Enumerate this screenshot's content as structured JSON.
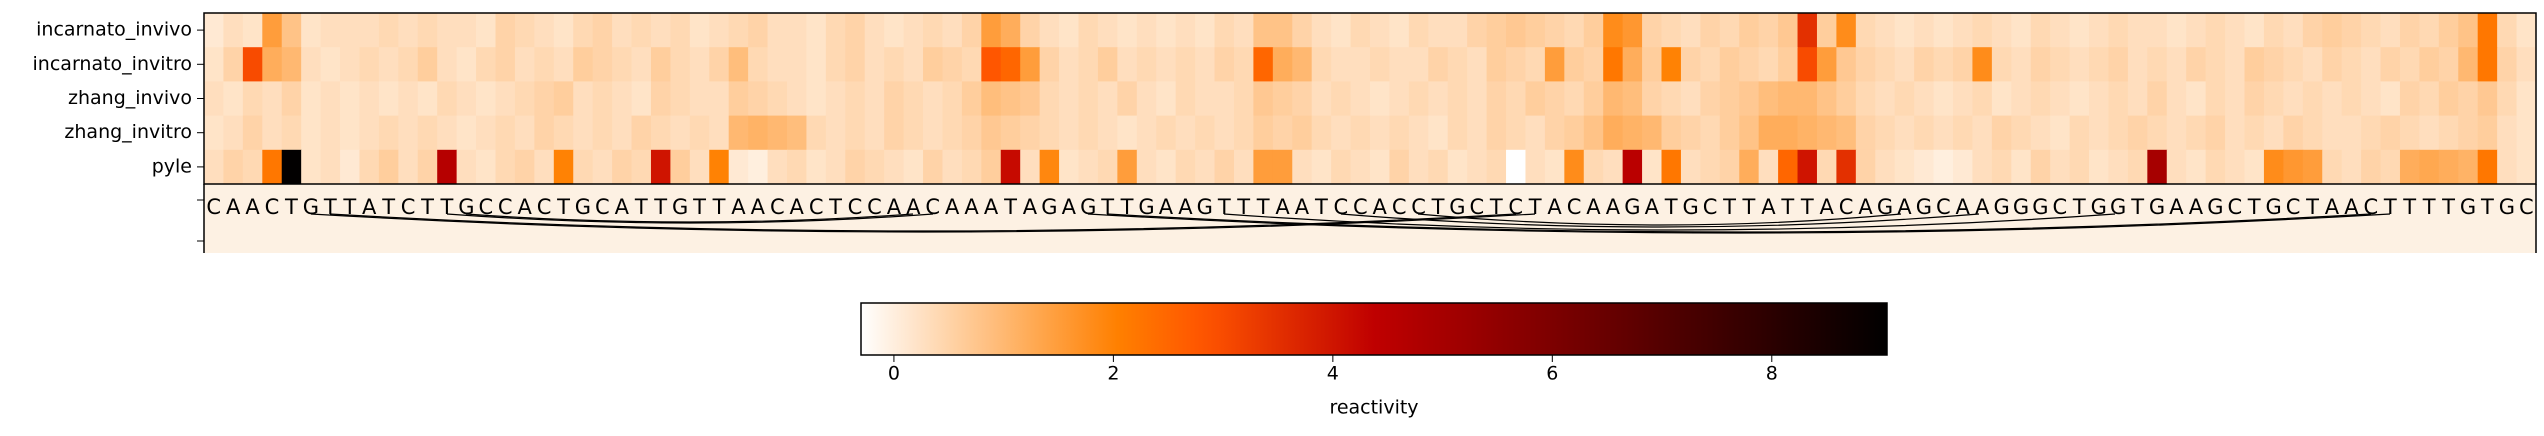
{
  "chart_data": {
    "type": "heatmap",
    "colormap": "gist_heat_r",
    "vlim": [
      -0.3,
      9.05
    ],
    "cticks": [
      0,
      2,
      4,
      6,
      8
    ],
    "colorbar_label": "reactivity",
    "sequence": [
      "C",
      "A",
      "A",
      "C",
      "T",
      "G",
      "T",
      "T",
      "A",
      "T",
      "C",
      "T",
      "T",
      "G",
      "C",
      "C",
      "A",
      "C",
      "T",
      "G",
      "C",
      "A",
      "T",
      "T",
      "G",
      "T",
      "T",
      "A",
      "A",
      "C",
      "A",
      "C",
      "T",
      "C",
      "C",
      "A",
      "A",
      "C",
      "A",
      "A",
      "A",
      "T",
      "A",
      "G",
      "A",
      "G",
      "T",
      "T",
      "G",
      "A",
      "A",
      "G",
      "T",
      "T",
      "T",
      "A",
      "A",
      "T",
      "C",
      "C",
      "A",
      "C",
      "C",
      "T",
      "G",
      "C",
      "T",
      "C",
      "T",
      "A",
      "C",
      "A",
      "A",
      "G",
      "A",
      "T",
      "G",
      "C",
      "T",
      "T",
      "A",
      "T",
      "T",
      "A",
      "C",
      "A",
      "G",
      "A",
      "G",
      "C",
      "A",
      "A",
      "G",
      "G",
      "G",
      "C",
      "T",
      "G",
      "G",
      "T",
      "G",
      "A",
      "A",
      "G",
      "C",
      "T",
      "G",
      "C",
      "T",
      "A",
      "A",
      "C",
      "T",
      "T",
      "T",
      "T",
      "G",
      "T",
      "G",
      "C"
    ],
    "series": [
      {
        "name": "incarnato_invivo",
        "values": [
          0.1,
          0.3,
          0.2,
          1.5,
          0.8,
          0.2,
          0.3,
          0.3,
          0.3,
          0.4,
          0.3,
          0.4,
          0.3,
          0.3,
          0.2,
          0.5,
          0.4,
          0.3,
          0.2,
          0.4,
          0.5,
          0.3,
          0.4,
          0.3,
          0.4,
          0.2,
          0.3,
          0.4,
          0.5,
          0.3,
          0.3,
          0.2,
          0.4,
          0.5,
          0.3,
          0.2,
          0.3,
          0.4,
          0.3,
          0.5,
          1.5,
          1.2,
          0.5,
          0.3,
          0.2,
          0.4,
          0.3,
          0.2,
          0.3,
          0.2,
          0.3,
          0.2,
          0.4,
          0.3,
          0.8,
          0.8,
          0.5,
          0.3,
          0.2,
          0.4,
          0.3,
          0.2,
          0.4,
          0.3,
          0.3,
          0.5,
          0.6,
          0.7,
          0.6,
          0.5,
          0.4,
          0.6,
          1.8,
          1.6,
          0.5,
          0.4,
          0.3,
          0.5,
          0.4,
          0.6,
          0.5,
          0.7,
          3.5,
          0.6,
          1.8,
          0.4,
          0.3,
          0.2,
          0.3,
          0.2,
          0.3,
          0.4,
          0.3,
          0.2,
          0.4,
          0.3,
          0.2,
          0.3,
          0.4,
          0.3,
          0.3,
          0.2,
          0.3,
          0.4,
          0.3,
          0.2,
          0.4,
          0.3,
          0.5,
          0.6,
          0.5,
          0.4,
          0.3,
          0.5,
          0.4,
          0.6,
          0.8,
          2.2,
          0.4,
          0.2
        ]
      },
      {
        "name": "incarnato_invitro",
        "values": [
          0.2,
          0.5,
          3.0,
          1.2,
          1.0,
          0.3,
          0.2,
          0.3,
          0.4,
          0.3,
          0.4,
          0.6,
          0.3,
          0.2,
          0.4,
          0.5,
          0.3,
          0.4,
          0.3,
          0.6,
          0.5,
          0.4,
          0.3,
          0.6,
          0.4,
          0.3,
          0.5,
          0.9,
          0.4,
          0.3,
          0.3,
          0.2,
          0.4,
          0.5,
          0.3,
          0.4,
          0.3,
          0.6,
          0.5,
          0.4,
          2.8,
          2.5,
          1.5,
          0.5,
          0.3,
          0.4,
          0.6,
          0.3,
          0.4,
          0.3,
          0.4,
          0.3,
          0.5,
          0.4,
          2.5,
          1.2,
          1.0,
          0.4,
          0.3,
          0.3,
          0.4,
          0.3,
          0.3,
          0.5,
          0.4,
          0.3,
          0.6,
          0.5,
          0.4,
          1.5,
          0.6,
          0.5,
          2.2,
          1.2,
          0.6,
          2.0,
          0.5,
          0.4,
          0.6,
          0.5,
          0.4,
          0.6,
          3.0,
          1.5,
          0.7,
          0.5,
          0.4,
          0.3,
          0.5,
          0.4,
          0.5,
          1.8,
          0.4,
          0.3,
          0.5,
          0.4,
          0.3,
          0.4,
          0.5,
          0.3,
          0.4,
          0.3,
          0.5,
          0.4,
          0.3,
          0.6,
          0.5,
          0.4,
          0.3,
          0.5,
          0.4,
          0.3,
          0.5,
          0.4,
          0.6,
          0.5,
          1.0,
          2.2,
          0.5,
          0.3
        ]
      },
      {
        "name": "zhang_invivo",
        "values": [
          0.3,
          0.2,
          0.4,
          0.3,
          0.5,
          0.2,
          0.3,
          0.2,
          0.3,
          0.2,
          0.3,
          0.2,
          0.4,
          0.3,
          0.2,
          0.3,
          0.4,
          0.5,
          0.6,
          0.3,
          0.4,
          0.3,
          0.2,
          0.5,
          0.4,
          0.3,
          0.3,
          0.6,
          0.5,
          0.4,
          0.3,
          0.2,
          0.3,
          0.4,
          0.3,
          0.5,
          0.4,
          0.3,
          0.4,
          0.6,
          0.9,
          0.8,
          0.7,
          0.4,
          0.3,
          0.4,
          0.3,
          0.5,
          0.3,
          0.2,
          0.4,
          0.3,
          0.3,
          0.4,
          0.7,
          0.6,
          0.5,
          0.3,
          0.4,
          0.3,
          0.2,
          0.3,
          0.4,
          0.3,
          0.4,
          0.3,
          0.5,
          0.4,
          0.6,
          0.5,
          0.4,
          0.6,
          1.0,
          0.9,
          0.5,
          0.4,
          0.3,
          0.5,
          0.6,
          0.7,
          0.9,
          1.0,
          1.0,
          0.8,
          0.6,
          0.4,
          0.3,
          0.4,
          0.3,
          0.2,
          0.3,
          0.4,
          0.2,
          0.3,
          0.4,
          0.3,
          0.2,
          0.3,
          0.4,
          0.3,
          0.5,
          0.3,
          0.2,
          0.4,
          0.3,
          0.5,
          0.4,
          0.3,
          0.4,
          0.3,
          0.4,
          0.3,
          0.2,
          0.5,
          0.4,
          0.6,
          0.5,
          0.7,
          0.4,
          0.2
        ]
      },
      {
        "name": "zhang_invitro",
        "values": [
          0.2,
          0.3,
          0.5,
          0.3,
          0.4,
          0.2,
          0.3,
          0.2,
          0.3,
          0.4,
          0.3,
          0.4,
          0.3,
          0.2,
          0.3,
          0.4,
          0.3,
          0.5,
          0.4,
          0.3,
          0.4,
          0.3,
          0.5,
          0.4,
          0.3,
          0.4,
          0.3,
          1.0,
          1.1,
          1.0,
          0.9,
          0.4,
          0.3,
          0.4,
          0.3,
          0.5,
          0.4,
          0.3,
          0.4,
          0.5,
          0.7,
          0.6,
          0.5,
          0.4,
          0.3,
          0.4,
          0.3,
          0.2,
          0.3,
          0.4,
          0.3,
          0.4,
          0.3,
          0.4,
          0.6,
          0.5,
          0.6,
          0.4,
          0.3,
          0.4,
          0.3,
          0.4,
          0.3,
          0.2,
          0.4,
          0.3,
          0.5,
          0.4,
          0.3,
          0.5,
          0.6,
          0.8,
          1.2,
          1.1,
          1.0,
          0.6,
          0.5,
          0.4,
          0.6,
          0.8,
          1.2,
          1.2,
          1.1,
          1.0,
          0.9,
          0.5,
          0.4,
          0.3,
          0.4,
          0.3,
          0.4,
          0.3,
          0.5,
          0.4,
          0.3,
          0.2,
          0.4,
          0.3,
          0.4,
          0.5,
          0.4,
          0.3,
          0.4,
          0.5,
          0.3,
          0.4,
          0.3,
          0.5,
          0.4,
          0.3,
          0.3,
          0.4,
          0.5,
          0.4,
          0.3,
          0.4,
          0.5,
          0.6,
          0.3,
          0.2
        ]
      },
      {
        "name": "pyle",
        "values": [
          0.3,
          0.5,
          0.4,
          2.2,
          9.0,
          0.2,
          0.3,
          0.1,
          0.4,
          0.6,
          0.3,
          0.5,
          4.6,
          0.3,
          0.2,
          0.4,
          0.5,
          0.3,
          2.0,
          0.4,
          0.3,
          0.5,
          0.4,
          4.0,
          0.6,
          0.3,
          2.0,
          0.1,
          0.0,
          0.3,
          0.4,
          0.2,
          0.3,
          0.5,
          0.4,
          0.3,
          0.2,
          0.5,
          0.3,
          0.4,
          0.6,
          4.2,
          0.3,
          1.9,
          0.2,
          0.3,
          0.4,
          1.5,
          0.3,
          0.2,
          0.4,
          0.3,
          0.5,
          0.3,
          1.5,
          1.5,
          0.3,
          0.2,
          0.4,
          0.3,
          0.2,
          0.5,
          0.3,
          0.4,
          0.2,
          0.3,
          0.4,
          -0.3,
          0.3,
          0.2,
          1.8,
          0.4,
          0.3,
          4.5,
          0.2,
          2.2,
          0.3,
          0.4,
          0.5,
          1.2,
          0.3,
          2.5,
          4.0,
          0.4,
          3.5,
          0.5,
          0.3,
          0.2,
          0.1,
          0.0,
          0.1,
          0.3,
          0.4,
          0.2,
          0.5,
          0.3,
          0.4,
          0.2,
          0.3,
          0.4,
          5.0,
          0.3,
          0.2,
          0.4,
          0.3,
          0.2,
          1.8,
          1.6,
          1.5,
          0.4,
          0.3,
          0.5,
          0.4,
          1.2,
          1.3,
          1.2,
          1.1,
          2.2,
          0.3,
          0.2
        ]
      }
    ]
  }
}
